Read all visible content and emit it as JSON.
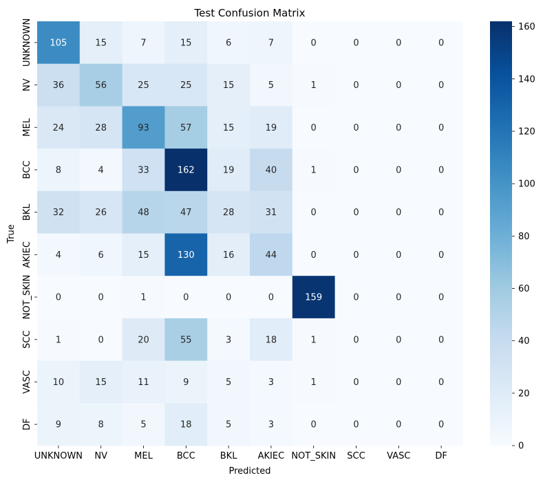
{
  "chart_data": {
    "type": "heatmap",
    "title": "Test Confusion Matrix",
    "xlabel": "Predicted",
    "ylabel": "True",
    "x_categories": [
      "UNKNOWN",
      "NV",
      "MEL",
      "BCC",
      "BKL",
      "AKIEC",
      "NOT_SKIN",
      "SCC",
      "VASC",
      "DF"
    ],
    "y_categories": [
      "UNKNOWN",
      "NV",
      "MEL",
      "BCC",
      "BKL",
      "AKIEC",
      "NOT_SKIN",
      "SCC",
      "VASC",
      "DF"
    ],
    "values": [
      [
        105,
        15,
        7,
        15,
        6,
        7,
        0,
        0,
        0,
        0
      ],
      [
        36,
        56,
        25,
        25,
        15,
        5,
        1,
        0,
        0,
        0
      ],
      [
        24,
        28,
        93,
        57,
        15,
        19,
        0,
        0,
        0,
        0
      ],
      [
        8,
        4,
        33,
        162,
        19,
        40,
        1,
        0,
        0,
        0
      ],
      [
        32,
        26,
        48,
        47,
        28,
        31,
        0,
        0,
        0,
        0
      ],
      [
        4,
        6,
        15,
        130,
        16,
        44,
        0,
        0,
        0,
        0
      ],
      [
        0,
        0,
        1,
        0,
        0,
        0,
        159,
        0,
        0,
        0
      ],
      [
        1,
        0,
        20,
        55,
        3,
        18,
        1,
        0,
        0,
        0
      ],
      [
        10,
        15,
        11,
        9,
        5,
        3,
        1,
        0,
        0,
        0
      ],
      [
        9,
        8,
        5,
        18,
        5,
        3,
        0,
        0,
        0,
        0
      ]
    ],
    "value_range": [
      0,
      162
    ],
    "colorbar_ticks": [
      0,
      20,
      40,
      60,
      80,
      100,
      120,
      140,
      160
    ],
    "colormap": "Blues",
    "colormap_stops": [
      "#f7fbff",
      "#deebf7",
      "#c6dbef",
      "#9ecae1",
      "#6baed6",
      "#4292c6",
      "#2171b5",
      "#08519c",
      "#08306b"
    ]
  }
}
